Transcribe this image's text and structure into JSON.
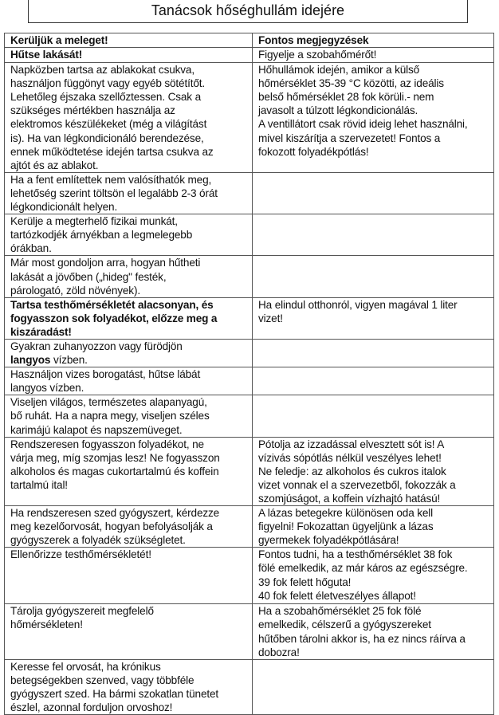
{
  "title": "Tanácsok hőséghullám idejére",
  "rows": [
    {
      "left": [
        {
          "t": "Kerüljük a meleget!",
          "b": true
        }
      ],
      "right": [
        {
          "t": "Fontos megjegyzések",
          "b": true
        }
      ],
      "h": 17
    },
    {
      "left": [
        {
          "t": "Hűtse lakását!",
          "b": true
        }
      ],
      "right": [
        {
          "t": "Figyelje a szobahőmérőt!"
        }
      ],
      "h": 19
    },
    {
      "left": [
        {
          "t": "Napközben  tartsa az ablakokat csukva,\nhasználjon függönyt vagy egyéb sötétítőt.\nLehetőleg éjszaka szellőztessen. Csak a\nszükséges mértékben használja az\nelektromos készülékeket (még a világítást\nis). Ha van légkondicionáló berendezése,\nennek működtetése idején tartsa csukva az\najtót és az ablakot."
        }
      ],
      "right": [
        {
          "t": "Hőhullámok idején, amikor a külső\nhőmérséklet 35-39 °C közötti, az ideális\nbelső hőmérséklet 28 fok körüli.- nem\njavasolt a túlzott légkondicionálás.\nA ventillátort csak rövid ideig lehet használni,\nmivel kiszárítja a szervezetet! Fontos a\nfokozott folyadékpótlás!"
        }
      ],
      "h": 136
    },
    {
      "left": [
        {
          "t": "Ha a fent említettek nem valósíthatók meg,\nlehetőség szerint töltsön el legalább 2-3 órát\nlégkondicionált helyen."
        }
      ],
      "right": [],
      "h": 52
    },
    {
      "left": [
        {
          "t": "Kerülje a megterhelő fizikai munkát,\ntartózkodjék árnyékban a legmelegebb\nórákban."
        }
      ],
      "right": [],
      "h": 51
    },
    {
      "left": [
        {
          "t": "Már most gondoljon arra, hogyan hűtheti\nlakását a jövőben („hideg\" festék,\npárologató, zöld növények)."
        }
      ],
      "right": [],
      "h": 52
    },
    {
      "left": [
        {
          "t": "Tartsa testhőmérsékletét alacsonyan, és\nfogyasszon sok folyadékot, előzze meg a\nkiszáradást!",
          "b": true
        }
      ],
      "right": [
        {
          "t": "Ha elindul otthonról, vigyen magával 1 liter\nvizet!"
        }
      ],
      "h": 52
    },
    {
      "left": [
        {
          "t": "Gyakran zuhanyozzon vagy fürödjön\n"
        },
        {
          "t": "langyos",
          "b": true
        },
        {
          "t": " vízben."
        }
      ],
      "right": [],
      "h": 35
    },
    {
      "left": [
        {
          "t": "Használjon vizes borogatást, hűtse lábát\nlangyos vízben."
        }
      ],
      "right": [],
      "h": 34
    },
    {
      "left": [
        {
          "t": "Viseljen világos, természetes alapanyagú,\nbő ruhát. Ha a napra megy, viseljen széles\nkarimájú kalapot és napszemüveget."
        }
      ],
      "right": [],
      "h": 51
    },
    {
      "left": [
        {
          "t": "Rendszeresen fogyasszon folyadékot, ne\nvárja meg, míg szomjas lesz! Ne fogyasszon\nalkoholos és magas cukortartalmú és koffein\ntartalmú ital!"
        }
      ],
      "right": [
        {
          "t": "Pótolja az izzadással elvesztett sót is! A\nvízivás sópótlás nélkül veszélyes lehet!\nNe feledje: az alkoholos és cukros italok\nvizet vonnak el a szervezetből, fokozzák a\nszomjúságot, a koffein vízhajtó hatású!"
        }
      ],
      "h": 86
    },
    {
      "left": [
        {
          "t": "Ha rendszeresen szed gyógyszert, kérdezze\nmeg kezelőorvosát, hogyan befolyásolják a\ngyógyszerek a folyadék szükségletet."
        }
      ],
      "right": [
        {
          "t": "A lázas betegekre különösen oda kell\nfigyelni! Fokozattan ügyeljünk a lázas\ngyermekek folyadékpótlására!"
        }
      ],
      "h": 52
    },
    {
      "left": [
        {
          "t": "Ellenőrizze testhőmérsékletét!"
        }
      ],
      "right": [
        {
          "t": "Fontos tudni, ha a testhőmérséklet 38 fok\nfölé emelkedik, az már káros az egészségre.\n39 fok felett hőguta!\n40 fok felett életveszélyes állapot!"
        }
      ],
      "h": 68
    },
    {
      "left": [
        {
          "t": "Tárolja gyógyszereit megfelelő\nhőmérsékleten!"
        }
      ],
      "right": [
        {
          "t": "Ha a szobahőmérséklet 25 fok fölé\nemelkedik, célszerű a gyógyszereket\nhűtőben tárolni akkor is, ha ez nincs ráírva a\ndobozra!"
        }
      ],
      "h": 68
    },
    {
      "left": [
        {
          "t": "Keresse fel orvosát, ha krónikus\nbetegségekben szenved, vagy többféle\ngyógyszert szed. Ha bármi szokatlan tünetet\nészlel, azonnal forduljon orvoshoz!"
        }
      ],
      "right": [],
      "h": 68
    }
  ]
}
